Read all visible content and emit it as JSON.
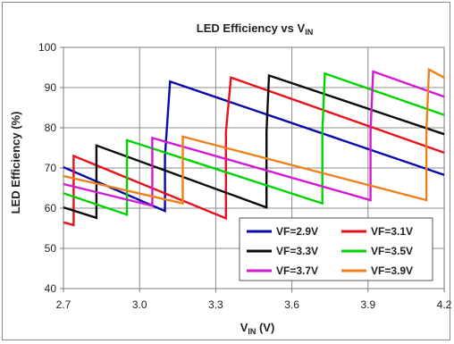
{
  "chart_data": {
    "type": "line",
    "title": {
      "main": "LED Efficiency  vs V",
      "sub": "IN"
    },
    "xlabel": {
      "main": "V",
      "sub": "IN",
      "tail": " (V)"
    },
    "ylabel": "LED Efficiency (%)",
    "xlim": [
      2.7,
      4.2
    ],
    "ylim": [
      40,
      100
    ],
    "xticks": [
      "2.7",
      "3.0",
      "3.3",
      "3.6",
      "3.9",
      "4.2"
    ],
    "yticks": [
      "40",
      "50",
      "60",
      "70",
      "80",
      "90",
      "100"
    ],
    "grid": true,
    "legend_position": "bottom-right",
    "series": [
      {
        "name": "VF=2.9V",
        "color": "#0a0aa8",
        "x": [
          2.7,
          3.1,
          3.1,
          3.12,
          4.2
        ],
        "y": [
          70.2,
          59.3,
          73.0,
          91.5,
          68.3
        ]
      },
      {
        "name": "VF=3.1V",
        "color": "#e8101a",
        "x": [
          2.7,
          2.74,
          2.74,
          3.34,
          3.34,
          3.36,
          4.2
        ],
        "y": [
          56.5,
          55.8,
          73.0,
          57.5,
          79.0,
          92.5,
          73.8
        ]
      },
      {
        "name": "VF=3.3V",
        "color": "#0a0a0a",
        "x": [
          2.7,
          2.83,
          2.83,
          3.5,
          3.5,
          3.51,
          4.2
        ],
        "y": [
          60.2,
          57.6,
          75.6,
          60.2,
          79.0,
          93.0,
          78.4
        ]
      },
      {
        "name": "VF=3.5V",
        "color": "#00d400",
        "x": [
          2.7,
          2.95,
          2.95,
          3.72,
          3.72,
          3.73,
          4.2
        ],
        "y": [
          63.7,
          58.4,
          76.9,
          61.2,
          79.0,
          93.5,
          83.2
        ]
      },
      {
        "name": "VF=3.7V",
        "color": "#d21ad2",
        "x": [
          2.7,
          3.05,
          3.05,
          3.91,
          3.91,
          3.92,
          4.2
        ],
        "y": [
          66.0,
          60.6,
          77.5,
          62.0,
          79.0,
          94.0,
          87.7
        ]
      },
      {
        "name": "VF=3.9V",
        "color": "#ef7f1a",
        "x": [
          2.7,
          3.17,
          3.17,
          4.13,
          4.13,
          4.14,
          4.2
        ],
        "y": [
          68.0,
          61.2,
          77.8,
          62.0,
          79.0,
          94.5,
          92.5
        ]
      }
    ]
  }
}
